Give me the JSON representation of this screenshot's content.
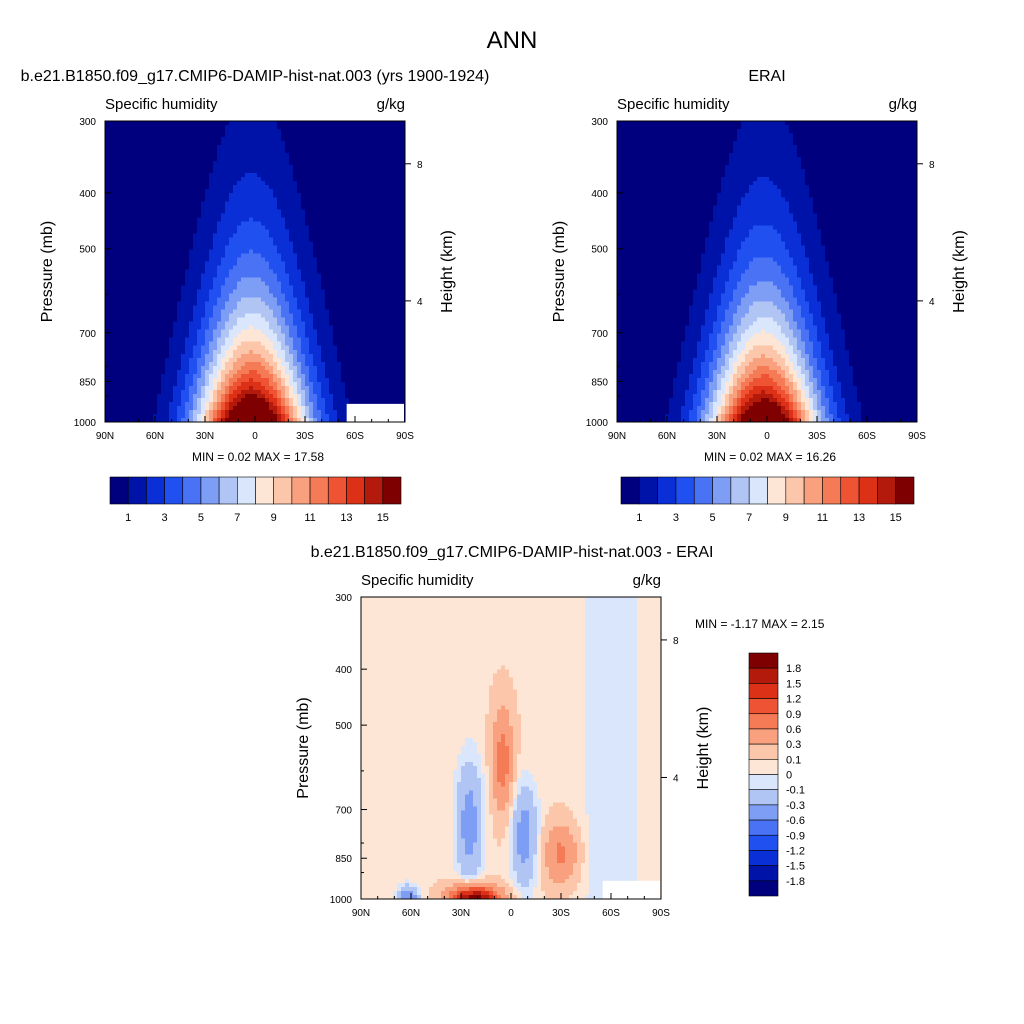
{
  "figure": {
    "title": "ANN"
  },
  "chart_data": [
    {
      "id": "model",
      "type": "contour",
      "title": "b.e21.B1850.f09_g17.CMIP6-DAMIP-hist-nat.003 (yrs 1900-1924)",
      "variable": "Specific humidity",
      "units": "g/kg",
      "ylabel": "Pressure (mb)",
      "y2label": "Height (km)",
      "xticks": [
        "90N",
        "60N",
        "30N",
        "0",
        "30S",
        "60S",
        "90S"
      ],
      "yticks": [
        300,
        400,
        500,
        700,
        850,
        1000
      ],
      "y2ticks": [
        8,
        4
      ],
      "stats": "MIN =   0.02  MAX =  17.58",
      "min": 0.02,
      "max": 17.58,
      "levels": [
        1,
        2,
        3,
        4,
        5,
        6,
        7,
        8,
        9,
        10,
        11,
        12,
        13,
        14,
        15
      ],
      "colorbar_labels": [
        "1",
        "3",
        "5",
        "7",
        "9",
        "11",
        "13",
        "15"
      ]
    },
    {
      "id": "obs",
      "type": "contour",
      "title": "ERAI",
      "variable": "Specific humidity",
      "units": "g/kg",
      "ylabel": "Pressure (mb)",
      "y2label": "Height (km)",
      "xticks": [
        "90N",
        "60N",
        "30N",
        "0",
        "30S",
        "60S",
        "90S"
      ],
      "yticks": [
        300,
        400,
        500,
        700,
        850,
        1000
      ],
      "y2ticks": [
        8,
        4
      ],
      "stats": "MIN =   0.02  MAX =  16.26",
      "min": 0.02,
      "max": 16.26,
      "levels": [
        1,
        2,
        3,
        4,
        5,
        6,
        7,
        8,
        9,
        10,
        11,
        12,
        13,
        14,
        15
      ],
      "colorbar_labels": [
        "1",
        "3",
        "5",
        "7",
        "9",
        "11",
        "13",
        "15"
      ]
    },
    {
      "id": "diff",
      "type": "contour",
      "title": "b.e21.B1850.f09_g17.CMIP6-DAMIP-hist-nat.003 - ERAI",
      "variable": "Specific humidity",
      "units": "g/kg",
      "ylabel": "Pressure (mb)",
      "y2label": "Height (km)",
      "xticks": [
        "90N",
        "60N",
        "30N",
        "0",
        "30S",
        "60S",
        "90S"
      ],
      "yticks": [
        300,
        400,
        500,
        700,
        850,
        1000
      ],
      "y2ticks": [
        8,
        4
      ],
      "stats": "MIN =  -1.17  MAX =   2.15",
      "min": -1.17,
      "max": 2.15,
      "levels": [
        -1.8,
        -1.5,
        -1.2,
        -0.9,
        -0.6,
        -0.3,
        -0.1,
        0,
        0.1,
        0.3,
        0.6,
        0.9,
        1.2,
        1.5,
        1.8
      ],
      "colorbar_labels": [
        "1.8",
        "1.5",
        "1.2",
        "0.9",
        "0.6",
        "0.3",
        "0.1",
        "0",
        "-0.1",
        "-0.3",
        "-0.6",
        "-0.9",
        "-1.2",
        "-1.5",
        "-1.8"
      ]
    }
  ],
  "colors": {
    "cmap_16": [
      "#00007f",
      "#0013a8",
      "#0a2fd6",
      "#2050f0",
      "#4a72f5",
      "#7e9df5",
      "#b1c5f5",
      "#dae6fb",
      "#fde6d6",
      "#fcc6aa",
      "#f9a07f",
      "#f57b57",
      "#ee5334",
      "#dc3017",
      "#b31a0b",
      "#7f0000"
    ],
    "cmap_diff": [
      "#00007f",
      "#0013a8",
      "#0a2fd6",
      "#2050f0",
      "#4a72f5",
      "#7e9df5",
      "#b1c5f5",
      "#dae6fb",
      "#fde6d6",
      "#fcc6aa",
      "#f9a07f",
      "#f57b57",
      "#ee5334",
      "#dc3017",
      "#b31a0b",
      "#7f0000"
    ]
  }
}
